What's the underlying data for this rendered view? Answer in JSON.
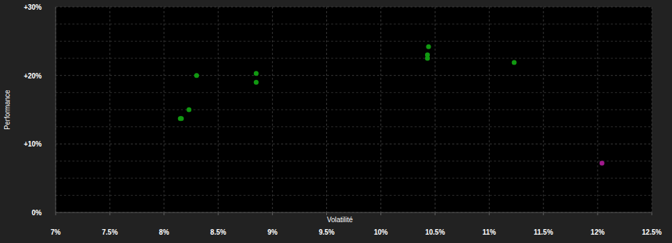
{
  "chart_data": {
    "type": "scatter",
    "x_label": "Volatilité",
    "y_label": "Performance",
    "x": [
      8.15,
      8.16,
      8.23,
      8.3,
      8.85,
      8.85,
      10.44,
      10.43,
      10.43,
      11.23,
      12.04
    ],
    "values": [
      13.7,
      13.7,
      15.0,
      20.0,
      20.3,
      19.0,
      24.2,
      23.0,
      22.5,
      21.9,
      7.2
    ],
    "colors": [
      "#119911",
      "#119911",
      "#119911",
      "#119911",
      "#119911",
      "#119911",
      "#119911",
      "#119911",
      "#119911",
      "#119911",
      "#a0198c"
    ],
    "xlim": [
      7,
      12.5
    ],
    "ylim": [
      0,
      30
    ],
    "xticks": [
      {
        "value": 7,
        "label": "7%"
      },
      {
        "value": 7.5,
        "label": "7.5%"
      },
      {
        "value": 8,
        "label": "8%"
      },
      {
        "value": 8.5,
        "label": "8.5%"
      },
      {
        "value": 9,
        "label": "9%"
      },
      {
        "value": 9.5,
        "label": "9.5%"
      },
      {
        "value": 10,
        "label": "10%"
      },
      {
        "value": 10.5,
        "label": "10.5%"
      },
      {
        "value": 11,
        "label": "11%"
      },
      {
        "value": 11.5,
        "label": "11.5%"
      },
      {
        "value": 12,
        "label": "12%"
      },
      {
        "value": 12.5,
        "label": "12.5%"
      }
    ],
    "yticks": [
      {
        "value": 0,
        "label": "0%"
      },
      {
        "value": 10,
        "label": "+10%"
      },
      {
        "value": 20,
        "label": "+20%"
      },
      {
        "value": 30,
        "label": "+30%"
      }
    ],
    "grid": true
  }
}
